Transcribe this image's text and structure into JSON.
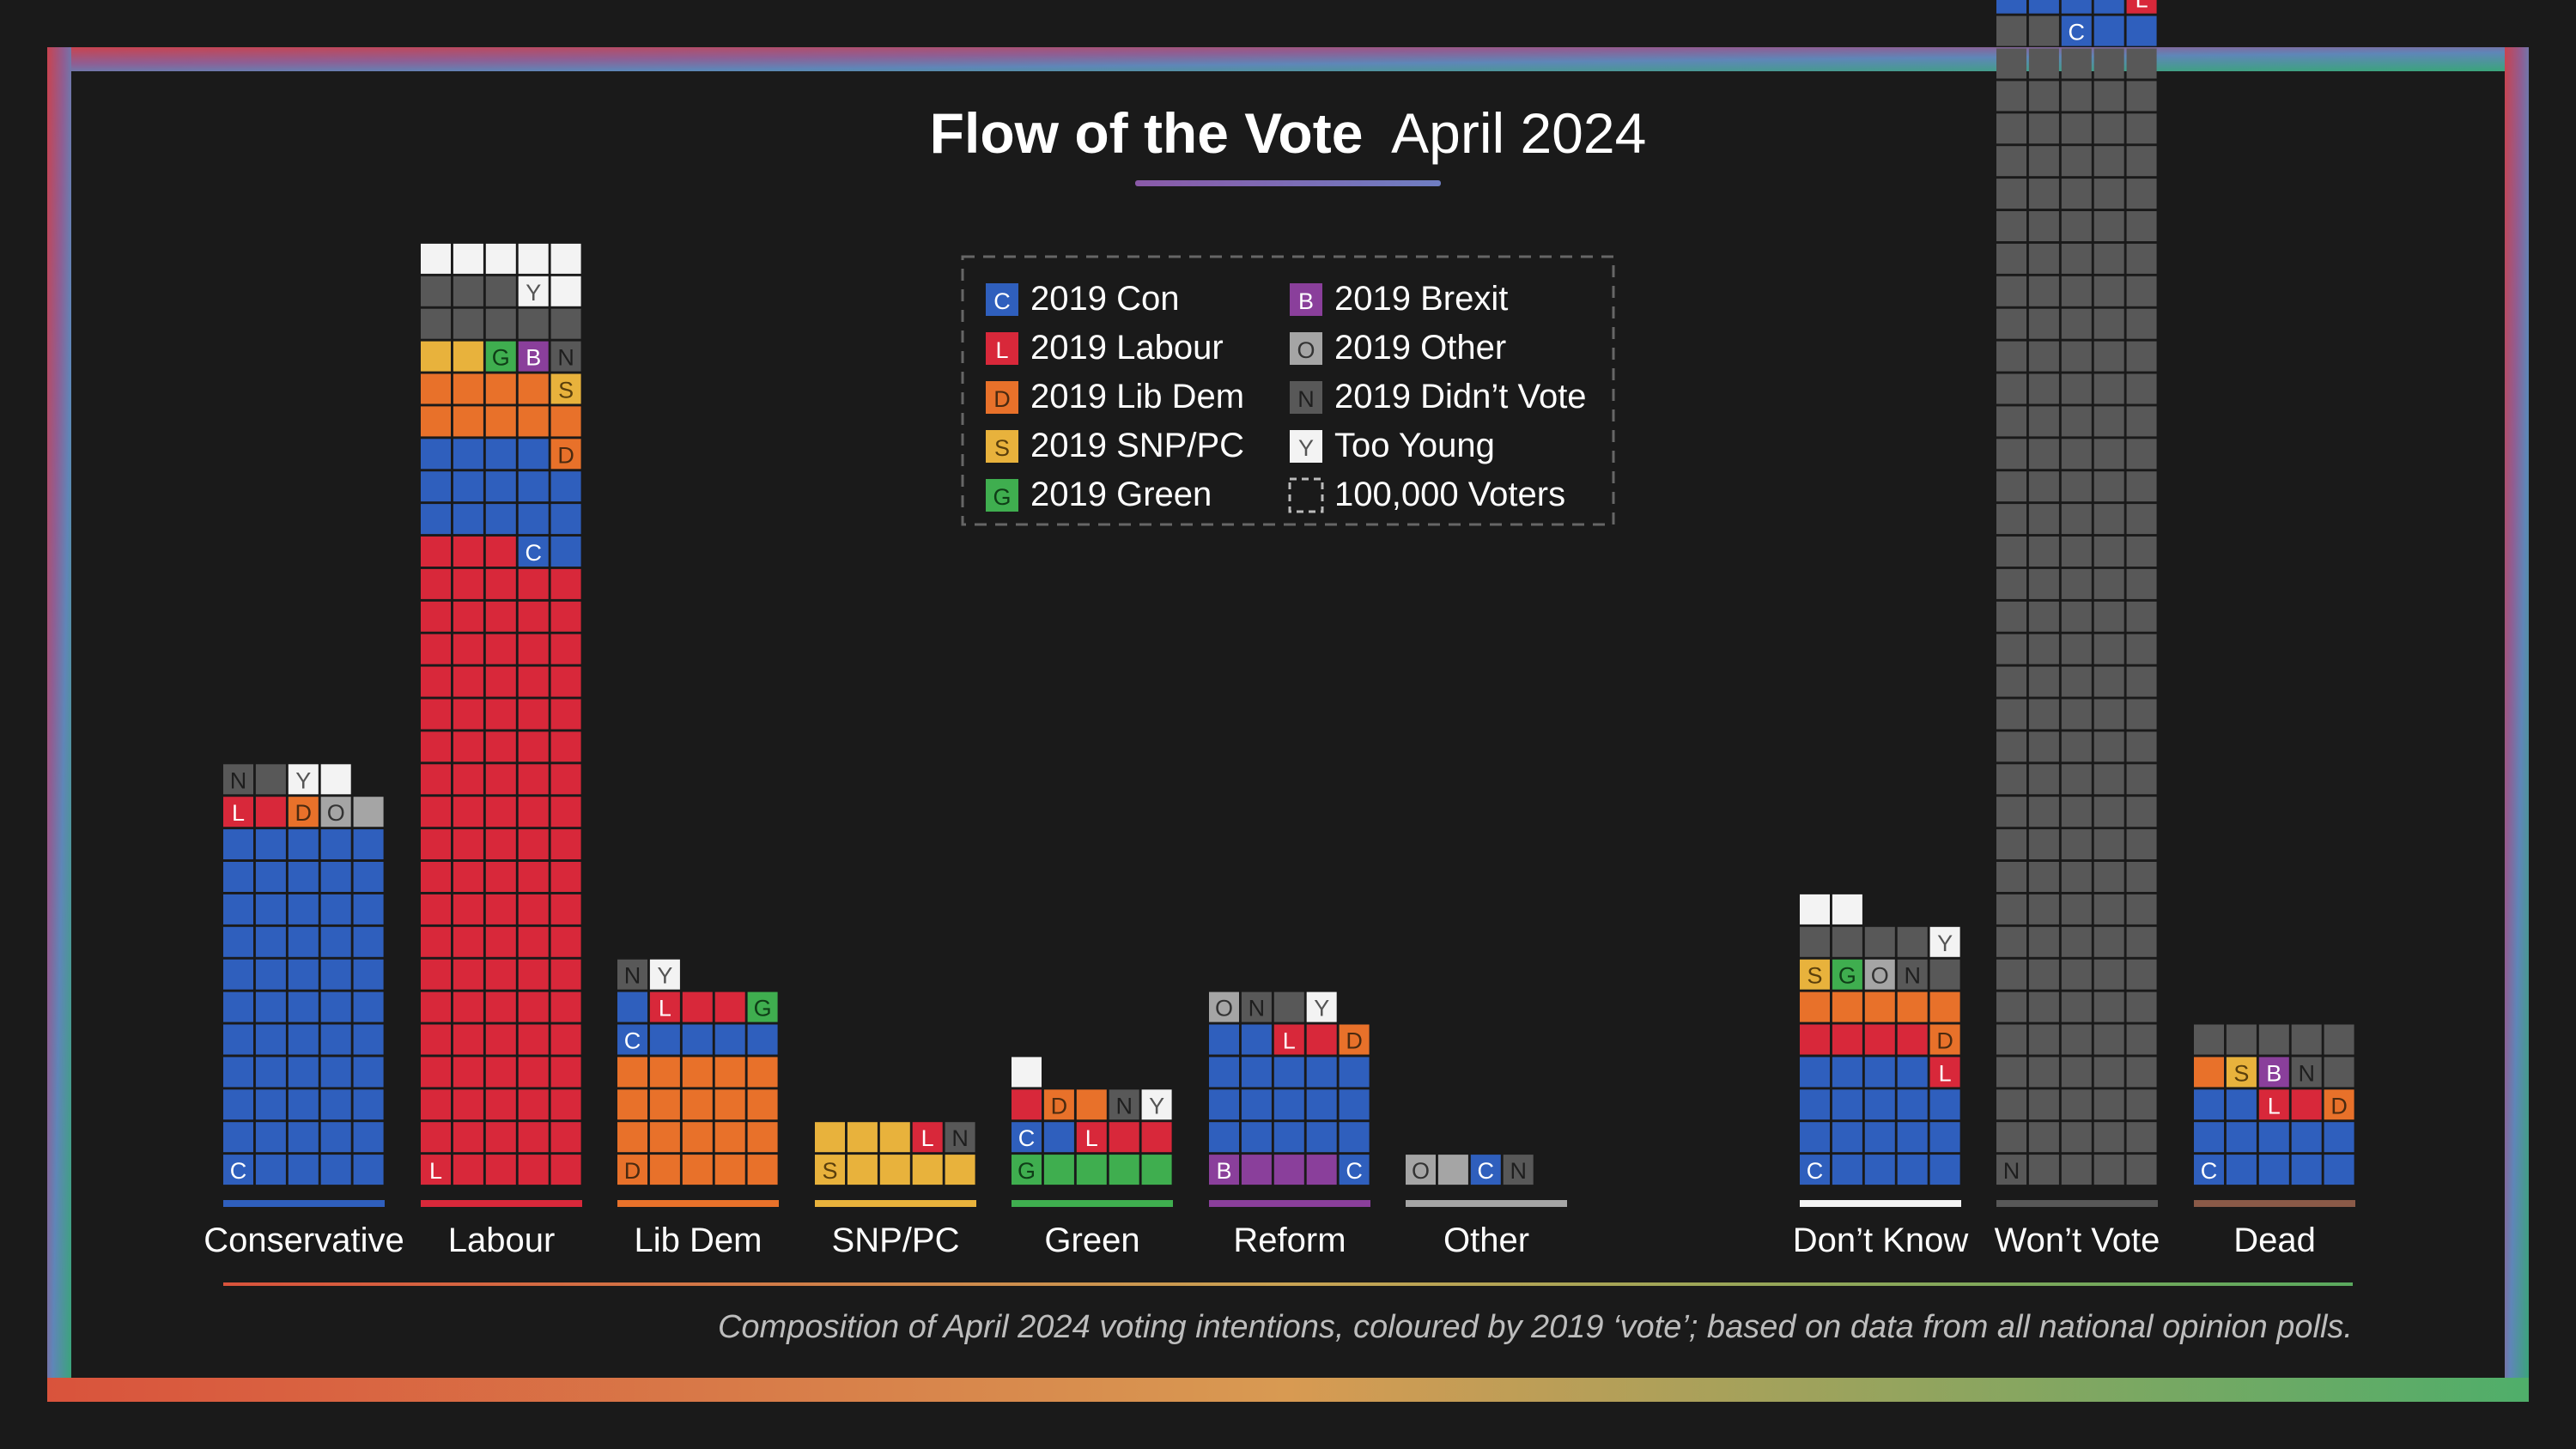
{
  "title": {
    "main": "Flow of the Vote",
    "date": "April 2024"
  },
  "footnote": "Composition of April 2024 voting intentions, coloured by 2019 ‘vote’; based on data from all national opinion polls.",
  "legend": [
    {
      "code": "C",
      "label": "2019 Con"
    },
    {
      "code": "L",
      "label": "2019 Labour"
    },
    {
      "code": "D",
      "label": "2019 Lib Dem"
    },
    {
      "code": "S",
      "label": "2019 SNP/PC"
    },
    {
      "code": "G",
      "label": "2019 Green"
    },
    {
      "code": "B",
      "label": "2019 Brexit"
    },
    {
      "code": "O",
      "label": "2019 Other"
    },
    {
      "code": "N",
      "label": "2019 Didn’t Vote"
    },
    {
      "code": "Y",
      "label": "Too Young"
    },
    {
      "code": "U",
      "label": "100,000 Voters"
    }
  ],
  "colors": {
    "C": "#2f5fbd",
    "L": "#d8283a",
    "D": "#e8712a",
    "S": "#e8b23c",
    "G": "#3fae4f",
    "B": "#8a3f9b",
    "O": "#a5a5a5",
    "N": "#585858",
    "Y": "#f3f3f3",
    "U": "#1a1a1a"
  },
  "chart_data": {
    "type": "waffle",
    "unit": "100,000 voters per square",
    "columns_per_party": 5,
    "categories": [
      "Conservative",
      "Labour",
      "Lib Dem",
      "SNP/PC",
      "Green",
      "Reform",
      "Other",
      "Don’t Know",
      "Won’t Vote",
      "Dead"
    ],
    "underline_colors": [
      "#2f5fbd",
      "#d8283a",
      "#e8712a",
      "#e8b23c",
      "#3fae4f",
      "#8a3f9b",
      "#a5a5a5",
      "#f3f3f3",
      "#585858",
      "#8a5a48"
    ],
    "series": [
      {
        "name": "Conservative",
        "squares": "CCCCCCCCCCCCCCCCCCCCCCCCCCCCCCCCCCCCCCCCCCCCCCCCCCCCCCCLLDOONNYY"
      },
      {
        "name": "Labour",
        "squares": "LLLLLLLLLLLLLLLLLLLLLLLLLLLLLLLLLLLLLLLLLLLLLLLLLLLLLLLLLLLLLLLLLLLLLLLLLLLLLLLLLLLLLLLLLLLLLLLLLLCCCCCCCCCCCCCCCCDDDDDDDDDDSSSGBNNNNNNNNNYYYYYYY"
      },
      {
        "name": "Lib Dem",
        "squares": "DDDDDDDDDDDDDDDDDDDDCCCCCCLLLGNY"
      },
      {
        "name": "SNP/PC",
        "squares": "SSSSSSSSLN"
      },
      {
        "name": "Green",
        "squares": "GGGGGCCLLLLDDNYY"
      },
      {
        "name": "Reform",
        "squares": "BBBBCCCCCCCCCCCCCCCCCCLLDONNY"
      },
      {
        "name": "Other",
        "squares": "OOCN"
      },
      {
        "name": "Don’t Know",
        "squares": "CCCCCCCCCCCCCCCCCCCLLLLLDDDDDDSGONNNNNNYYY"
      },
      {
        "name": "Won’t Vote",
        "squares": "NNNNNNNNNNNNNNNNNNNNNNNNNNNNNNNNNNNNNNNNNNNNNNNNNNNNNNNNNNNNNNNNNNNNNNNNNNNNNNNNNNNNNNNNNNNNNNNNNNNNNNNNNNNNNNNNNNNNNNNNNNNNNNNNNNNNNNNNNNNNNNNNNNNNNNNNNNNNNNNNNNNNNNNNNNNNNNNNNCCCCCCCLLDYYYYYYYYYYY"
      },
      {
        "name": "Dead",
        "squares": "CCCCCCCCCCCCLLDDSBNNNNNNN"
      }
    ]
  }
}
